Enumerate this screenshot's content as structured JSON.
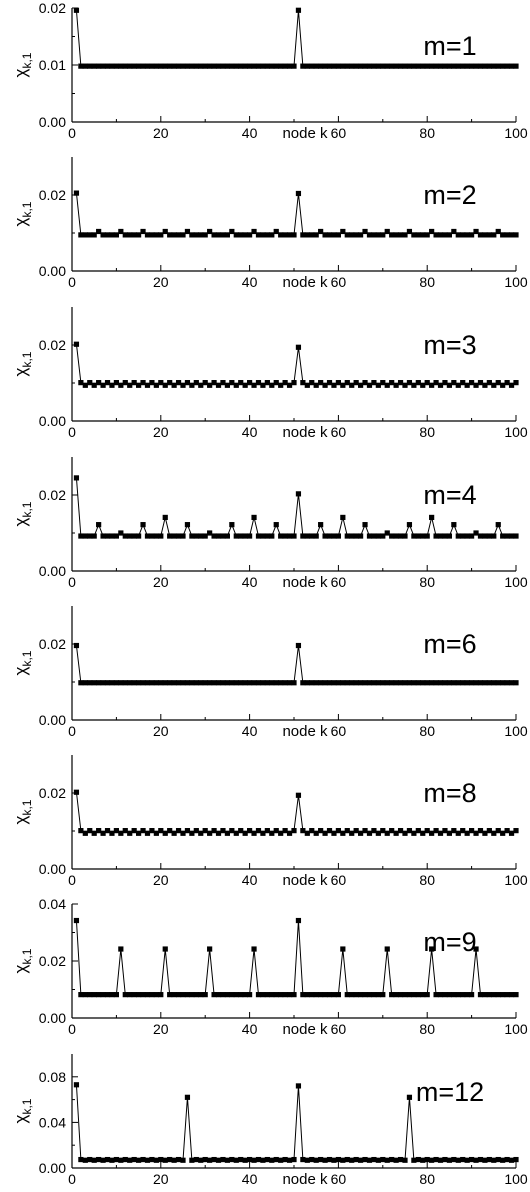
{
  "chart_data": [
    {
      "type": "line",
      "label": "m=1",
      "ylabel": "χ",
      "ylabel_sub": "k,1",
      "xlabel": "node k",
      "xlim": [
        0,
        100
      ],
      "ylim": [
        0,
        0.02
      ],
      "xticks": [
        0,
        20,
        40,
        60,
        80,
        100
      ],
      "xtick_labels": [
        "0",
        "20",
        "40",
        "60",
        "80",
        "100"
      ],
      "yticks": [
        0,
        0.01,
        0.02
      ],
      "ytick_labels": [
        "0.00",
        "0.01",
        "0.02"
      ],
      "base": 0.0098,
      "peaks": [
        [
          1,
          0.0196
        ],
        [
          51,
          0.0196
        ]
      ]
    },
    {
      "type": "line",
      "label": "m=2",
      "ylabel": "χ",
      "ylabel_sub": "k,1",
      "xlabel": "node k",
      "xlim": [
        0,
        100
      ],
      "ylim": [
        0,
        0.03
      ],
      "xticks": [
        0,
        20,
        40,
        60,
        80,
        100
      ],
      "xtick_labels": [
        "0",
        "20",
        "40",
        "60",
        "80",
        "100"
      ],
      "yticks": [
        0,
        0.02
      ],
      "ytick_labels": [
        "0.00",
        "0.02"
      ],
      "base": 0.0095,
      "period": 5,
      "period_value": 0.0104,
      "peaks": [
        [
          1,
          0.0205
        ],
        [
          51,
          0.0204
        ]
      ]
    },
    {
      "type": "line",
      "label": "m=3",
      "ylabel": "χ",
      "ylabel_sub": "k,1",
      "xlabel": "node k",
      "xlim": [
        0,
        100
      ],
      "ylim": [
        0,
        0.03
      ],
      "xticks": [
        0,
        20,
        40,
        60,
        80,
        100
      ],
      "xtick_labels": [
        "0",
        "20",
        "40",
        "60",
        "80",
        "100"
      ],
      "yticks": [
        0,
        0.02
      ],
      "ytick_labels": [
        "0.00",
        "0.02"
      ],
      "base": 0.0094,
      "wiggle": 0.0007,
      "peaks": [
        [
          1,
          0.0202
        ],
        [
          51,
          0.0194
        ]
      ]
    },
    {
      "type": "line",
      "label": "m=4",
      "ylabel": "χ",
      "ylabel_sub": "k,1",
      "xlabel": "node k",
      "xlim": [
        0,
        100
      ],
      "ylim": [
        0,
        0.03
      ],
      "xticks": [
        0,
        20,
        40,
        60,
        80,
        100
      ],
      "xtick_labels": [
        "0",
        "20",
        "40",
        "60",
        "80",
        "100"
      ],
      "yticks": [
        0,
        0.02
      ],
      "ytick_labels": [
        "0.00",
        "0.02"
      ],
      "base": 0.0092,
      "peaks": [
        [
          1,
          0.0245
        ],
        [
          6,
          0.0122
        ],
        [
          11,
          0.01
        ],
        [
          16,
          0.0122
        ],
        [
          21,
          0.0141
        ],
        [
          26,
          0.0122
        ],
        [
          31,
          0.01
        ],
        [
          36,
          0.0122
        ],
        [
          41,
          0.0141
        ],
        [
          46,
          0.0122
        ],
        [
          51,
          0.0203
        ],
        [
          56,
          0.0122
        ],
        [
          61,
          0.0141
        ],
        [
          66,
          0.0122
        ],
        [
          71,
          0.01
        ],
        [
          76,
          0.0122
        ],
        [
          81,
          0.0141
        ],
        [
          86,
          0.0122
        ],
        [
          91,
          0.01
        ],
        [
          96,
          0.0122
        ]
      ]
    },
    {
      "type": "line",
      "label": "m=6",
      "ylabel": "χ",
      "ylabel_sub": "k,1",
      "xlabel": "node k",
      "xlim": [
        0,
        100
      ],
      "ylim": [
        0,
        0.03
      ],
      "xticks": [
        0,
        20,
        40,
        60,
        80,
        100
      ],
      "xtick_labels": [
        "0",
        "20",
        "40",
        "60",
        "80",
        "100"
      ],
      "yticks": [
        0,
        0.02
      ],
      "ytick_labels": [
        "0.00",
        "0.02"
      ],
      "base": 0.0098,
      "peaks": [
        [
          1,
          0.0196
        ],
        [
          51,
          0.0196
        ]
      ]
    },
    {
      "type": "line",
      "label": "m=8",
      "ylabel": "χ",
      "ylabel_sub": "k,1",
      "xlabel": "node k",
      "xlim": [
        0,
        100
      ],
      "ylim": [
        0,
        0.03
      ],
      "xticks": [
        0,
        20,
        40,
        60,
        80,
        100
      ],
      "xtick_labels": [
        "0",
        "20",
        "40",
        "60",
        "80",
        "100"
      ],
      "yticks": [
        0,
        0.02
      ],
      "ytick_labels": [
        "0.00",
        "0.02"
      ],
      "base": 0.0094,
      "wiggle": 0.0007,
      "peaks": [
        [
          1,
          0.0202
        ],
        [
          51,
          0.0194
        ]
      ]
    },
    {
      "type": "line",
      "label": "m=9",
      "ylabel": "χ",
      "ylabel_sub": "k,1",
      "xlabel": "node k",
      "xlim": [
        0,
        100
      ],
      "ylim": [
        0,
        0.04
      ],
      "xticks": [
        0,
        20,
        40,
        60,
        80,
        100
      ],
      "xtick_labels": [
        "0",
        "20",
        "40",
        "60",
        "80",
        "100"
      ],
      "yticks": [
        0,
        0.02,
        0.04
      ],
      "ytick_labels": [
        "0.00",
        "0.02",
        "0.04"
      ],
      "base": 0.0082,
      "peaks": [
        [
          1,
          0.0342
        ],
        [
          11,
          0.0242
        ],
        [
          21,
          0.0242
        ],
        [
          31,
          0.0242
        ],
        [
          41,
          0.0242
        ],
        [
          51,
          0.0342
        ],
        [
          61,
          0.0242
        ],
        [
          71,
          0.0242
        ],
        [
          81,
          0.0242
        ],
        [
          91,
          0.0242
        ]
      ]
    },
    {
      "type": "line",
      "label": "m=12",
      "ylabel": "χ",
      "ylabel_sub": "k,1",
      "xlabel": "node k",
      "xlim": [
        0,
        100
      ],
      "ylim": [
        0,
        0.1
      ],
      "xticks": [
        0,
        20,
        40,
        60,
        80,
        100
      ],
      "xtick_labels": [
        "0",
        "20",
        "40",
        "60",
        "80",
        "100"
      ],
      "yticks": [
        0,
        0.04,
        0.08
      ],
      "ytick_labels": [
        "0.00",
        "0.04",
        "0.08"
      ],
      "base": 0.0068,
      "wiggle": 0.0006,
      "peaks": [
        [
          1,
          0.073
        ],
        [
          26,
          0.062
        ],
        [
          51,
          0.072
        ],
        [
          76,
          0.062
        ]
      ]
    }
  ]
}
